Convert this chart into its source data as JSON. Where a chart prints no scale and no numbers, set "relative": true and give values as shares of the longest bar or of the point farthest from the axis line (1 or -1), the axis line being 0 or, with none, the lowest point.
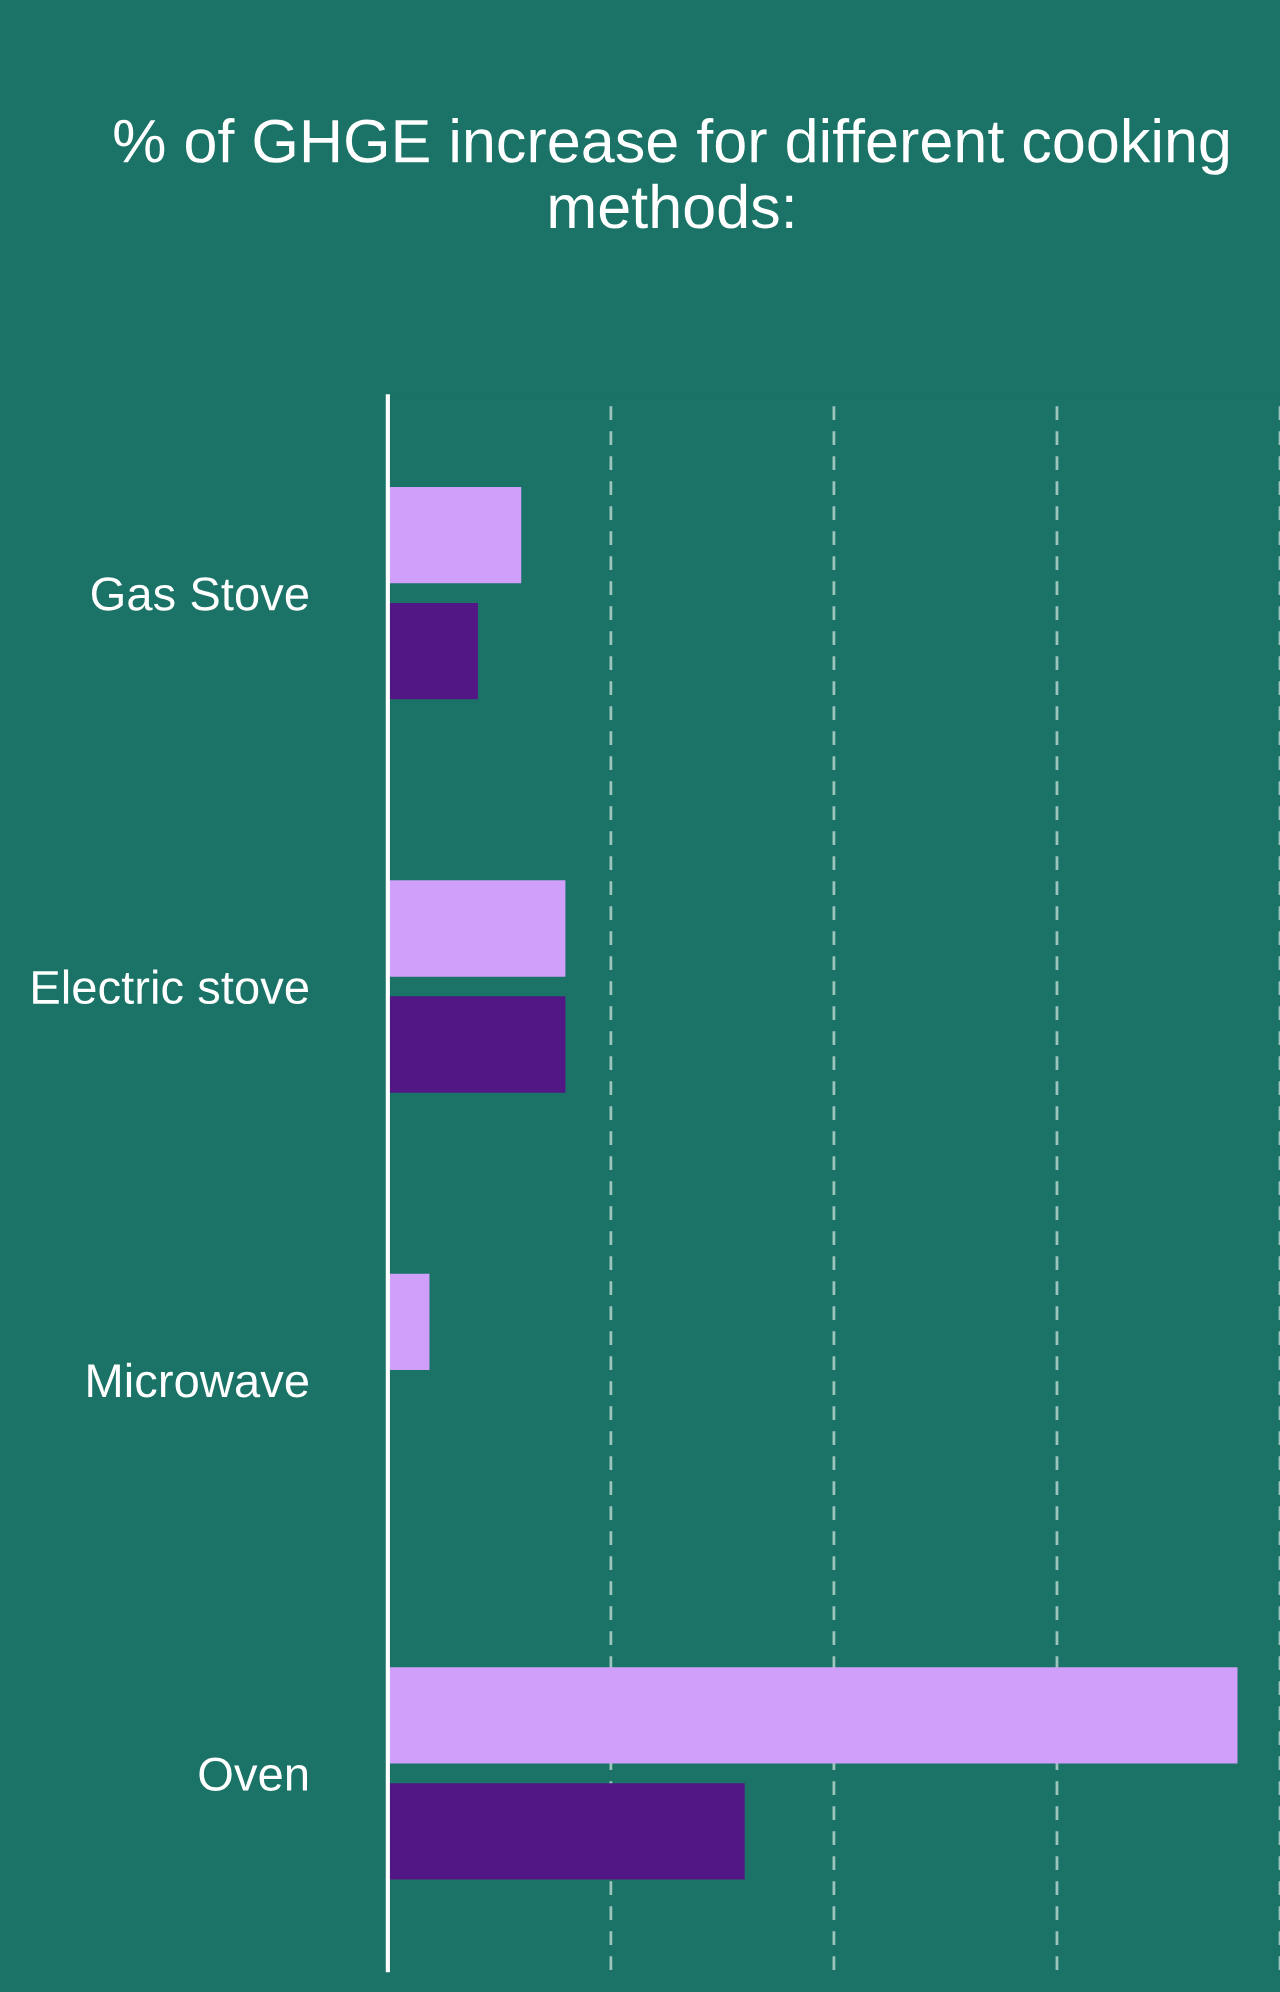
{
  "chart_data": {
    "type": "bar",
    "orientation": "horizontal",
    "relative": true,
    "title": "% of GHGE increase for different cooking methods:",
    "categories": [
      "Gas Stove",
      "Electric stove",
      "Microwave",
      "Oven"
    ],
    "series": [
      {
        "color": "#d09ffa",
        "values": [
          0.157,
          0.209,
          0.049,
          1
        ]
      },
      {
        "color": "#521785",
        "values": [
          0.106,
          0.209,
          null,
          0.42
        ]
      }
    ],
    "grid": "x",
    "legend": false
  }
}
